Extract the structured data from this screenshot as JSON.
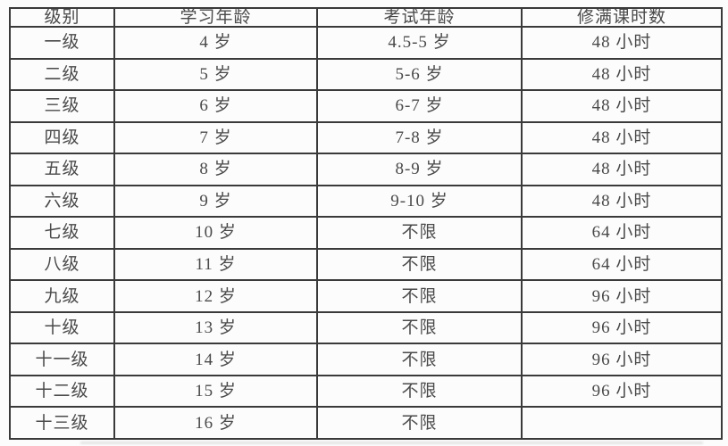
{
  "colors": {
    "page_background": "#fcfcfc",
    "border": "#3a3a3a",
    "text": "#4a4a4a"
  },
  "table": {
    "headers": [
      "级别",
      "学习年龄",
      "考试年龄",
      "修满课时数"
    ],
    "rows": [
      [
        "一级",
        "4 岁",
        "4.5-5 岁",
        "48 小时"
      ],
      [
        "二级",
        "5 岁",
        "5-6 岁",
        "48 小时"
      ],
      [
        "三级",
        "6 岁",
        "6-7 岁",
        "48 小时"
      ],
      [
        "四级",
        "7 岁",
        "7-8 岁",
        "48 小时"
      ],
      [
        "五级",
        "8 岁",
        "8-9 岁",
        "48 小时"
      ],
      [
        "六级",
        "9 岁",
        "9-10 岁",
        "48 小时"
      ],
      [
        "七级",
        "10 岁",
        "不限",
        "64 小时"
      ],
      [
        "八级",
        "11 岁",
        "不限",
        "64 小时"
      ],
      [
        "九级",
        "12 岁",
        "不限",
        "96 小时"
      ],
      [
        "十级",
        "13 岁",
        "不限",
        "96 小时"
      ],
      [
        "十一级",
        "14 岁",
        "不限",
        "96 小时"
      ],
      [
        "十二级",
        "15 岁",
        "不限",
        "96 小时"
      ],
      [
        "十三级",
        "16 岁",
        "不限",
        ""
      ]
    ]
  }
}
